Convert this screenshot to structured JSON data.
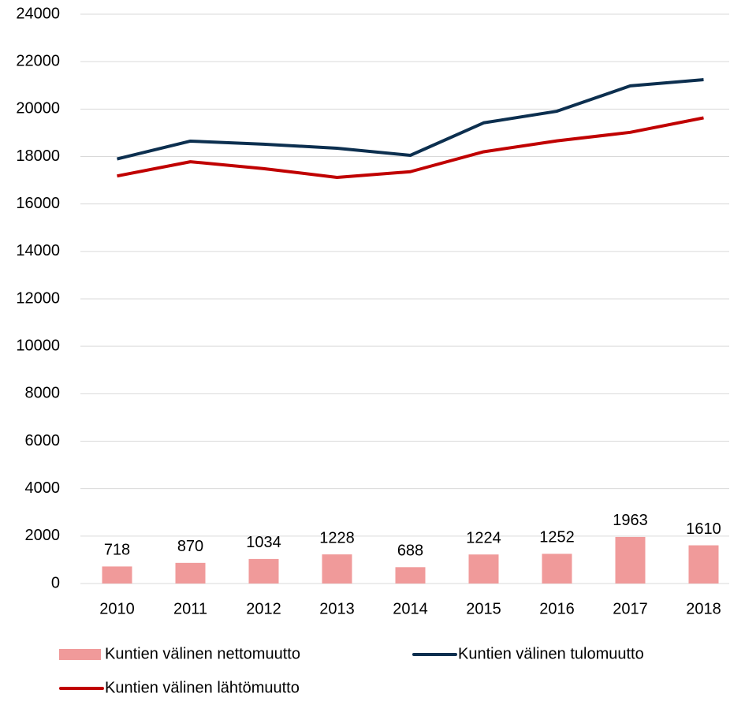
{
  "chart_data": {
    "type": "bar_line",
    "categories": [
      "2010",
      "2011",
      "2012",
      "2013",
      "2014",
      "2015",
      "2016",
      "2017",
      "2018"
    ],
    "series": [
      {
        "name": "Kuntien välinen nettomuutto",
        "type": "bar",
        "color": "#f09a9a",
        "values": [
          718,
          870,
          1034,
          1228,
          688,
          1224,
          1252,
          1963,
          1610
        ]
      },
      {
        "name": "Kuntien välinen tulomuutto",
        "type": "line",
        "color": "#0c2f4f",
        "values": [
          17900,
          18650,
          18520,
          18350,
          18050,
          19420,
          19910,
          20980,
          21240
        ]
      },
      {
        "name": "Kuntien välinen lähtömuutto",
        "type": "line",
        "color": "#c00000",
        "values": [
          17180,
          17780,
          17490,
          17120,
          17360,
          18200,
          18660,
          19020,
          19630
        ]
      }
    ],
    "ylim": [
      0,
      24000
    ],
    "yticks": [
      0,
      2000,
      4000,
      6000,
      8000,
      10000,
      12000,
      14000,
      16000,
      18000,
      20000,
      22000,
      24000
    ],
    "grid": true,
    "legend": "bottom"
  }
}
